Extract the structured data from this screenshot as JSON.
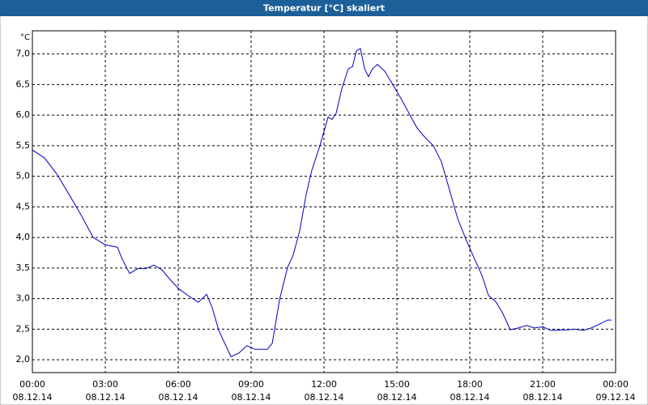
{
  "chart_data": {
    "type": "line",
    "title": "Temperatur [°C] skaliert",
    "y_unit": "°C",
    "series": [
      {
        "name": "Temperatur",
        "color": "#0000c0",
        "x": [
          0,
          0.5,
          1,
          1.5,
          2,
          2.5,
          3,
          3.5,
          3.67,
          4,
          4.33,
          4.67,
          5,
          5.33,
          5.67,
          6,
          6.33,
          6.83,
          7.17,
          7.4,
          7.67,
          8.17,
          8.5,
          8.83,
          9.17,
          9.67,
          9.87,
          10.17,
          10.5,
          10.73,
          11,
          11.27,
          11.5,
          11.83,
          12.17,
          12.33,
          12.5,
          12.73,
          13,
          13.17,
          13.33,
          13.5,
          13.67,
          13.83,
          14,
          14.2,
          14.5,
          14.83,
          15.17,
          15.5,
          15.83,
          16.17,
          16.5,
          16.83,
          17.17,
          17.5,
          17.83,
          18.17,
          18.5,
          18.77,
          19.07,
          19.33,
          19.67,
          20,
          20.33,
          20.67,
          21,
          21.33,
          22,
          22.33,
          22.67,
          23,
          23.33,
          23.67,
          23.83
        ],
        "values": [
          5.43,
          5.3,
          5.04,
          4.71,
          4.37,
          4,
          3.88,
          3.84,
          3.67,
          3.41,
          3.49,
          3.49,
          3.55,
          3.47,
          3.31,
          3.17,
          3.07,
          2.94,
          3.07,
          2.85,
          2.48,
          2.05,
          2.11,
          2.23,
          2.17,
          2.17,
          2.27,
          2.98,
          3.51,
          3.71,
          4.11,
          4.71,
          5.1,
          5.5,
          5.97,
          5.93,
          6.03,
          6.43,
          6.76,
          6.79,
          7.05,
          7.09,
          6.76,
          6.63,
          6.76,
          6.83,
          6.72,
          6.5,
          6.27,
          6.03,
          5.79,
          5.63,
          5.5,
          5.24,
          4.77,
          4.31,
          3.98,
          3.67,
          3.38,
          3.05,
          2.95,
          2.78,
          2.49,
          2.52,
          2.56,
          2.52,
          2.54,
          2.48,
          2.49,
          2.5,
          2.48,
          2.52,
          2.58,
          2.65,
          2.65
        ]
      }
    ],
    "xlim": [
      0,
      24
    ],
    "ylim": [
      1.79,
      7.38
    ],
    "xticks": [
      {
        "value": 0,
        "label": "00:00",
        "date": "08.12.14"
      },
      {
        "value": 3,
        "label": "03:00",
        "date": "08.12.14"
      },
      {
        "value": 6,
        "label": "06:00",
        "date": "08.12.14"
      },
      {
        "value": 9,
        "label": "09:00",
        "date": "08.12.14"
      },
      {
        "value": 12,
        "label": "12:00",
        "date": "08.12.14"
      },
      {
        "value": 15,
        "label": "15:00",
        "date": "08.12.14"
      },
      {
        "value": 18,
        "label": "18:00",
        "date": "08.12.14"
      },
      {
        "value": 21,
        "label": "21:00",
        "date": "08.12.14"
      },
      {
        "value": 24,
        "label": "00:00",
        "date": "09.12.14"
      }
    ],
    "yticks": [
      {
        "value": 2,
        "label": "2,0"
      },
      {
        "value": 2.5,
        "label": "2,5"
      },
      {
        "value": 3,
        "label": "3,0"
      },
      {
        "value": 3.5,
        "label": "3,5"
      },
      {
        "value": 4,
        "label": "4,0"
      },
      {
        "value": 4.5,
        "label": "4,5"
      },
      {
        "value": 5,
        "label": "5,0"
      },
      {
        "value": 5.5,
        "label": "5,5"
      },
      {
        "value": 6,
        "label": "6,0"
      },
      {
        "value": 6.5,
        "label": "6,5"
      },
      {
        "value": 7,
        "label": "7,0"
      }
    ],
    "grid": true
  }
}
